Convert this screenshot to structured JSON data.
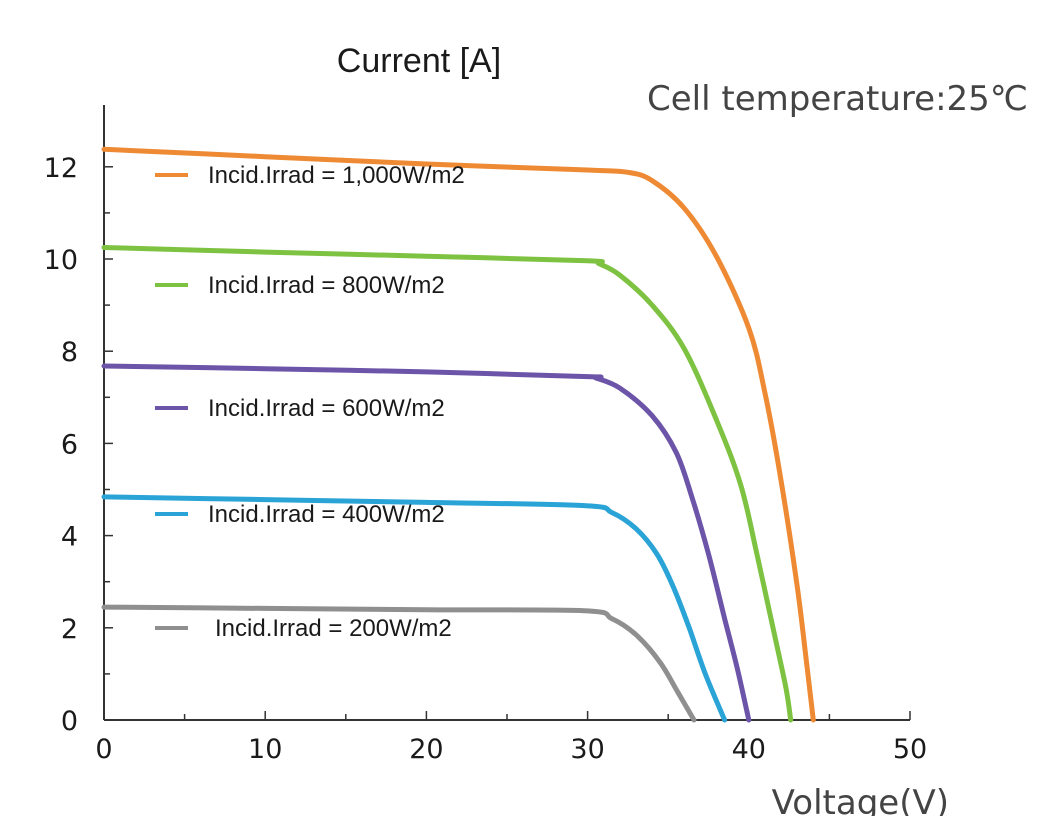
{
  "chart_data": {
    "type": "line",
    "ylabel": "Current [A]",
    "xlabel": "Voltage(V)",
    "annotation": "Cell temperature:25℃",
    "xlim": [
      0,
      50
    ],
    "ylim": [
      0,
      12.5
    ],
    "xticks": [
      "0",
      "10",
      "20",
      "30",
      "40",
      "50"
    ],
    "yticks": [
      "0",
      "2",
      "4",
      "6",
      "8",
      "10",
      "12"
    ],
    "grid": false,
    "legend_position": "inside-left",
    "series": [
      {
        "name": "Incid.Irrad = 1,000W/m2",
        "color": "#ee8a34",
        "points": [
          [
            0,
            12.38
          ],
          [
            10,
            12.22
          ],
          [
            20,
            12.06
          ],
          [
            30,
            11.93
          ],
          [
            32.5,
            11.88
          ],
          [
            34,
            11.7
          ],
          [
            36,
            11.1
          ],
          [
            38,
            10.05
          ],
          [
            40,
            8.5
          ],
          [
            41,
            7.1
          ],
          [
            42,
            5.2
          ],
          [
            43,
            2.9
          ],
          [
            43.6,
            1.2
          ],
          [
            44.0,
            0
          ]
        ]
      },
      {
        "name": "Incid.Irrad = 800W/m2",
        "color": "#7ec242",
        "points": [
          [
            0,
            10.25
          ],
          [
            10,
            10.15
          ],
          [
            20,
            10.06
          ],
          [
            30,
            9.96
          ],
          [
            30.7,
            9.9
          ],
          [
            32,
            9.65
          ],
          [
            34,
            9.0
          ],
          [
            36,
            8.05
          ],
          [
            38,
            6.5
          ],
          [
            39.5,
            5.1
          ],
          [
            40.5,
            3.6
          ],
          [
            41.5,
            2.0
          ],
          [
            42.3,
            0.7
          ],
          [
            42.6,
            0
          ]
        ]
      },
      {
        "name": "Incid.Irrad = 600W/m2",
        "color": "#6c55a8",
        "points": [
          [
            0,
            7.68
          ],
          [
            10,
            7.62
          ],
          [
            20,
            7.55
          ],
          [
            30,
            7.45
          ],
          [
            30.5,
            7.42
          ],
          [
            32,
            7.2
          ],
          [
            34,
            6.6
          ],
          [
            35.5,
            5.8
          ],
          [
            36.5,
            4.8
          ],
          [
            37.5,
            3.6
          ],
          [
            38.5,
            2.2
          ],
          [
            39.3,
            1.1
          ],
          [
            40.0,
            0
          ]
        ]
      },
      {
        "name": "Incid.Irrad = 400W/m2",
        "color": "#2aa3d6",
        "points": [
          [
            0,
            4.84
          ],
          [
            10,
            4.78
          ],
          [
            20,
            4.72
          ],
          [
            29.8,
            4.65
          ],
          [
            31.5,
            4.5
          ],
          [
            33,
            4.15
          ],
          [
            34.3,
            3.6
          ],
          [
            35.3,
            2.9
          ],
          [
            36.3,
            2.0
          ],
          [
            37.3,
            1.0
          ],
          [
            38.5,
            0
          ]
        ]
      },
      {
        "name": "Incid.Irrad = 200W/m2",
        "color": "#8f8f8f",
        "points": [
          [
            0,
            2.45
          ],
          [
            10,
            2.42
          ],
          [
            20,
            2.39
          ],
          [
            29.8,
            2.37
          ],
          [
            31.5,
            2.2
          ],
          [
            33,
            1.85
          ],
          [
            34.5,
            1.25
          ],
          [
            35.6,
            0.6
          ],
          [
            36.6,
            0
          ]
        ]
      }
    ]
  }
}
